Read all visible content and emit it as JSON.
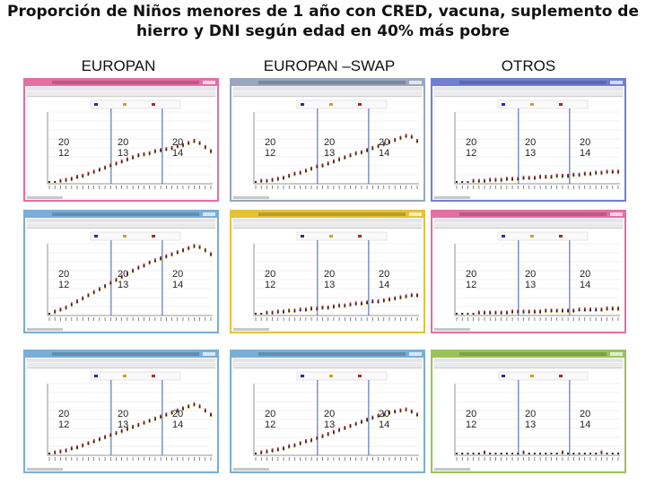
{
  "title": "Proporción de Niños menores de 1 año con CRED, vacuna, suplemento de hierro y DNI según edad en 40% más pobre",
  "columns": [
    "EUROPAN",
    "EUROPAN –SWAP",
    "OTROS"
  ],
  "period_labels": [
    [
      "20",
      "12"
    ],
    [
      "20",
      "13"
    ],
    [
      "20",
      "14"
    ]
  ],
  "colors": {
    "series": [
      "#2b2b9e",
      "#d4a017",
      "#a52a2a",
      "#222222"
    ],
    "divider": "#3a5fa8",
    "window_frames": [
      "#e36fa3",
      "#9aa6bf",
      "#6f7fd1",
      "#7aaed6",
      "#e3c23a",
      "#e36fa3",
      "#7aaed6",
      "#7aaed6",
      "#9bc25a"
    ]
  },
  "chart_data": [
    {
      "type": "scatter",
      "panel": "EUROPAN row 1",
      "x_labels": [
        "2012",
        "2013",
        "2014"
      ],
      "series": [
        {
          "values": [
            0,
            0,
            1,
            2,
            3,
            5,
            6,
            8,
            10,
            12,
            14,
            16,
            18,
            20,
            22,
            24,
            26,
            27,
            28,
            30,
            31,
            32,
            33,
            35,
            36,
            38,
            40,
            38,
            34,
            30
          ]
        }
      ]
    },
    {
      "type": "scatter",
      "panel": "EUROPAN –SWAP row 1",
      "x_labels": [
        "2012",
        "2013",
        "2014"
      ],
      "series": [
        {
          "values": [
            0,
            1,
            1,
            2,
            3,
            4,
            6,
            8,
            9,
            11,
            13,
            15,
            16,
            18,
            20,
            22,
            24,
            26,
            28,
            29,
            31,
            33,
            35,
            37,
            39,
            41,
            43,
            45,
            44,
            40
          ]
        }
      ]
    },
    {
      "type": "scatter",
      "panel": "OTROS row 1",
      "x_labels": [
        "2012",
        "2013",
        "2014"
      ],
      "series": [
        {
          "values": [
            0,
            0,
            0,
            1,
            1,
            1,
            2,
            2,
            2,
            3,
            3,
            3,
            4,
            4,
            4,
            5,
            5,
            5,
            6,
            6,
            6,
            7,
            7,
            8,
            8,
            9,
            9,
            10,
            10,
            10
          ]
        }
      ]
    },
    {
      "type": "scatter",
      "panel": "EUROPAN row 2",
      "x_labels": [
        "2012",
        "2013",
        "2014"
      ],
      "series": [
        {
          "values": [
            0,
            2,
            4,
            6,
            9,
            12,
            15,
            18,
            21,
            24,
            27,
            30,
            33,
            36,
            39,
            42,
            45,
            47,
            50,
            52,
            54,
            56,
            58,
            60,
            62,
            64,
            66,
            65,
            62,
            58
          ]
        }
      ]
    },
    {
      "type": "scatter",
      "panel": "EUROPAN –SWAP row 2",
      "x_labels": [
        "2012",
        "2013",
        "2014"
      ],
      "series": [
        {
          "values": [
            0,
            0,
            1,
            1,
            2,
            2,
            3,
            3,
            4,
            4,
            5,
            5,
            6,
            6,
            7,
            8,
            8,
            9,
            10,
            10,
            11,
            12,
            12,
            13,
            14,
            15,
            16,
            17,
            18,
            18
          ]
        }
      ]
    },
    {
      "type": "scatter",
      "panel": "OTROS row 2",
      "x_labels": [
        "2012",
        "2013",
        "2014"
      ],
      "series": [
        {
          "values": [
            0,
            0,
            0,
            0,
            1,
            1,
            1,
            1,
            1,
            1,
            2,
            2,
            2,
            2,
            2,
            2,
            3,
            3,
            3,
            3,
            3,
            3,
            4,
            4,
            4,
            4,
            4,
            5,
            5,
            5
          ]
        }
      ]
    },
    {
      "type": "scatter",
      "panel": "EUROPAN row 3",
      "x_labels": [
        "2012",
        "2013",
        "2014"
      ],
      "series": [
        {
          "values": [
            0,
            1,
            2,
            3,
            5,
            6,
            8,
            10,
            12,
            14,
            16,
            18,
            20,
            22,
            24,
            26,
            28,
            30,
            32,
            34,
            36,
            38,
            40,
            42,
            44,
            46,
            48,
            46,
            42,
            38
          ]
        }
      ]
    },
    {
      "type": "scatter",
      "panel": "EUROPAN –SWAP row 3",
      "x_labels": [
        "2012",
        "2013",
        "2014"
      ],
      "series": [
        {
          "values": [
            0,
            1,
            2,
            3,
            4,
            5,
            7,
            8,
            10,
            12,
            13,
            15,
            17,
            19,
            21,
            23,
            25,
            27,
            29,
            31,
            33,
            35,
            37,
            38,
            40,
            41,
            42,
            43,
            41,
            38
          ]
        }
      ]
    },
    {
      "type": "scatter",
      "panel": "OTROS row 3",
      "x_labels": [
        "2012",
        "2013",
        "2014"
      ],
      "series": [
        {
          "values": [
            0,
            0,
            0,
            0,
            0,
            1,
            0,
            0,
            0,
            0,
            0,
            0,
            1,
            0,
            0,
            0,
            0,
            0,
            0,
            1,
            0,
            0,
            0,
            0,
            0,
            0,
            1,
            0,
            0,
            0
          ]
        }
      ]
    }
  ]
}
